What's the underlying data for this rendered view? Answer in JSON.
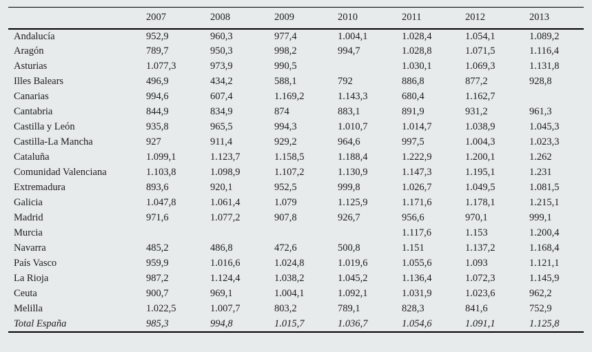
{
  "colors": {
    "background": "#e7ebeb",
    "text": "#1c1c1c",
    "rule": "#000000"
  },
  "table": {
    "columns": [
      "",
      "2007",
      "2008",
      "2009",
      "2010",
      "2011",
      "2012",
      "2013"
    ],
    "rows": [
      {
        "label": "Andalucía",
        "italic": false,
        "values": [
          "952,9",
          "960,3",
          "977,4",
          "1.004,1",
          "1.028,4",
          "1.054,1",
          "1.089,2"
        ]
      },
      {
        "label": "Aragón",
        "italic": false,
        "values": [
          "789,7",
          "950,3",
          "998,2",
          "994,7",
          "1.028,8",
          "1.071,5",
          "1.116,4"
        ]
      },
      {
        "label": "Asturias",
        "italic": false,
        "values": [
          "1.077,3",
          "973,9",
          "990,5",
          "",
          "1.030,1",
          "1.069,3",
          "1.131,8"
        ]
      },
      {
        "label": "Illes Balears",
        "italic": false,
        "values": [
          "496,9",
          "434,2",
          "588,1",
          "792",
          "886,8",
          "877,2",
          "928,8"
        ]
      },
      {
        "label": "Canarias",
        "italic": false,
        "values": [
          "994,6",
          "607,4",
          "1.169,2",
          "1.143,3",
          "680,4",
          "1.162,7",
          ""
        ]
      },
      {
        "label": "Cantabria",
        "italic": false,
        "values": [
          "844,9",
          "834,9",
          "874",
          "883,1",
          "891,9",
          "931,2",
          "961,3"
        ]
      },
      {
        "label": "Castilla y León",
        "italic": false,
        "values": [
          "935,8",
          "965,5",
          "994,3",
          "1.010,7",
          "1.014,7",
          "1.038,9",
          "1.045,3"
        ]
      },
      {
        "label": "Castilla-La Mancha",
        "italic": false,
        "values": [
          "927",
          "911,4",
          "929,2",
          "964,6",
          "997,5",
          "1.004,3",
          "1.023,3"
        ]
      },
      {
        "label": "Cataluña",
        "italic": false,
        "values": [
          "1.099,1",
          "1.123,7",
          "1.158,5",
          "1.188,4",
          "1.222,9",
          "1.200,1",
          "1.262"
        ]
      },
      {
        "label": "Comunidad Valenciana",
        "italic": false,
        "values": [
          "1.103,8",
          "1.098,9",
          "1.107,2",
          "1.130,9",
          "1.147,3",
          "1.195,1",
          "1.231"
        ]
      },
      {
        "label": "Extremadura",
        "italic": false,
        "values": [
          "893,6",
          "920,1",
          "952,5",
          "999,8",
          "1.026,7",
          "1.049,5",
          "1.081,5"
        ]
      },
      {
        "label": "Galicia",
        "italic": false,
        "values": [
          "1.047,8",
          "1.061,4",
          "1.079",
          "1.125,9",
          "1.171,6",
          "1.178,1",
          "1.215,1"
        ]
      },
      {
        "label": "Madrid",
        "italic": false,
        "values": [
          "971,6",
          "1.077,2",
          "907,8",
          "926,7",
          "956,6",
          "970,1",
          "999,1"
        ]
      },
      {
        "label": "Murcia",
        "italic": false,
        "values": [
          "",
          "",
          "",
          "",
          "1.117,6",
          "1.153",
          "1.200,4"
        ]
      },
      {
        "label": "Navarra",
        "italic": false,
        "values": [
          "485,2",
          "486,8",
          "472,6",
          "500,8",
          "1.151",
          "1.137,2",
          "1.168,4"
        ]
      },
      {
        "label": "País Vasco",
        "italic": false,
        "values": [
          "959,9",
          "1.016,6",
          "1.024,8",
          "1.019,6",
          "1.055,6",
          "1.093",
          "1.121,1"
        ]
      },
      {
        "label": "La Rioja",
        "italic": false,
        "values": [
          "987,2",
          "1.124,4",
          "1.038,2",
          "1.045,2",
          "1.136,4",
          "1.072,3",
          "1.145,9"
        ]
      },
      {
        "label": "Ceuta",
        "italic": false,
        "values": [
          "900,7",
          "969,1",
          "1.004,1",
          "1.092,1",
          "1.031,9",
          "1.023,6",
          "962,2"
        ]
      },
      {
        "label": "Melilla",
        "italic": false,
        "values": [
          "1.022,5",
          "1.007,7",
          "803,2",
          "789,1",
          "828,3",
          "841,6",
          "752,9"
        ]
      },
      {
        "label": "Total España",
        "italic": true,
        "values": [
          "985,3",
          "994,8",
          "1.015,7",
          "1.036,7",
          "1.054,6",
          "1.091,1",
          "1.125,8"
        ]
      }
    ]
  }
}
